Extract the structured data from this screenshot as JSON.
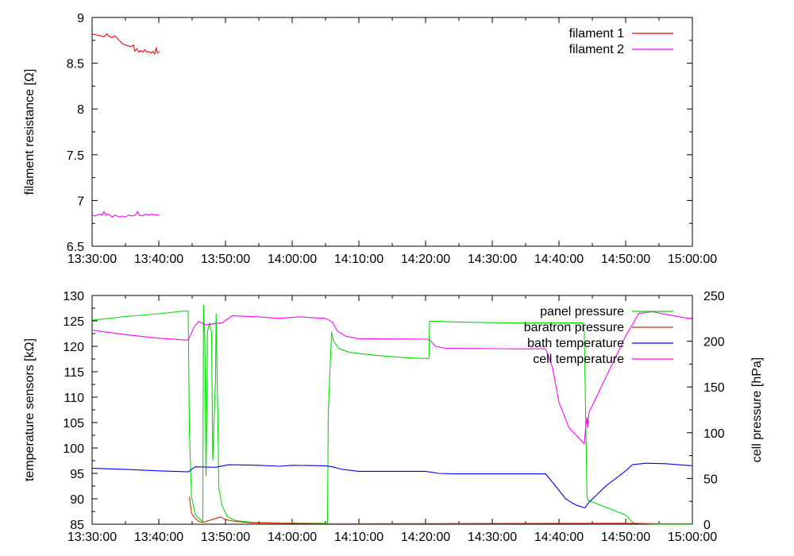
{
  "chart_data": [
    {
      "type": "line",
      "ylabel": "filament resistance [Ω]",
      "ylim": [
        6.5,
        9
      ],
      "yticks": [
        "6.5",
        "7",
        "7.5",
        "8",
        "8.5",
        "9"
      ],
      "xticks": [
        "13:30:00",
        "13:40:00",
        "13:50:00",
        "14:00:00",
        "14:10:00",
        "14:20:00",
        "14:30:00",
        "14:40:00",
        "14:50:00",
        "15:00:00"
      ],
      "xlim_minutes": [
        0,
        90
      ],
      "legend_position": "top-right",
      "series": [
        {
          "name": "filament 1",
          "color": "#ff0000",
          "points": [
            [
              0,
              8.82
            ],
            [
              0.6,
              8.81
            ],
            [
              1.2,
              8.8
            ],
            [
              1.8,
              8.79
            ],
            [
              2.2,
              8.82
            ],
            [
              2.6,
              8.79
            ],
            [
              3.0,
              8.78
            ],
            [
              3.4,
              8.8
            ],
            [
              3.8,
              8.77
            ],
            [
              4.2,
              8.74
            ],
            [
              4.6,
              8.71
            ],
            [
              5.0,
              8.7
            ],
            [
              5.4,
              8.69
            ],
            [
              5.8,
              8.68
            ],
            [
              6.2,
              8.7
            ],
            [
              6.4,
              8.63
            ],
            [
              6.7,
              8.66
            ],
            [
              7.0,
              8.62
            ],
            [
              7.3,
              8.64
            ],
            [
              7.6,
              8.62
            ],
            [
              7.9,
              8.65
            ],
            [
              8.2,
              8.62
            ],
            [
              8.5,
              8.63
            ],
            [
              8.8,
              8.61
            ],
            [
              9.1,
              8.63
            ],
            [
              9.4,
              8.6
            ],
            [
              9.6,
              8.67
            ],
            [
              9.8,
              8.61
            ],
            [
              10.1,
              8.63
            ]
          ]
        },
        {
          "name": "filament 2",
          "color": "#ff00ff",
          "points": [
            [
              0,
              6.84
            ],
            [
              0.5,
              6.83
            ],
            [
              1.0,
              6.85
            ],
            [
              1.5,
              6.84
            ],
            [
              1.8,
              6.88
            ],
            [
              2.1,
              6.84
            ],
            [
              2.5,
              6.85
            ],
            [
              3.0,
              6.82
            ],
            [
              3.5,
              6.84
            ],
            [
              4.0,
              6.82
            ],
            [
              4.5,
              6.83
            ],
            [
              5.0,
              6.82
            ],
            [
              5.5,
              6.84
            ],
            [
              6.0,
              6.83
            ],
            [
              6.5,
              6.84
            ],
            [
              6.8,
              6.88
            ],
            [
              7.1,
              6.84
            ],
            [
              7.6,
              6.83
            ],
            [
              8.0,
              6.85
            ],
            [
              8.5,
              6.84
            ],
            [
              9.0,
              6.85
            ],
            [
              9.5,
              6.84
            ],
            [
              10.1,
              6.84
            ]
          ]
        }
      ]
    },
    {
      "type": "line",
      "ylabel": "temperature sensors [kΩ]",
      "y2label": "cell pressure [hPa]",
      "ylim": [
        85,
        130
      ],
      "y2lim": [
        0,
        250
      ],
      "yticks": [
        "85",
        "90",
        "95",
        "100",
        "105",
        "110",
        "115",
        "120",
        "125",
        "130"
      ],
      "y2ticks": [
        "0",
        "50",
        "100",
        "150",
        "200",
        "250"
      ],
      "xticks": [
        "13:30:00",
        "13:40:00",
        "13:50:00",
        "14:00:00",
        "14:10:00",
        "14:20:00",
        "14:30:00",
        "14:40:00",
        "14:50:00",
        "15:00:00"
      ],
      "xlim_minutes": [
        0,
        90
      ],
      "legend_position": "top-right",
      "series": [
        {
          "name": "panel pressure",
          "color": "#00dd00",
          "axis": "y2",
          "points": [
            [
              0,
              223
            ],
            [
              5,
              227
            ],
            [
              10,
              230
            ],
            [
              13.8,
              233
            ],
            [
              14.4,
              233
            ],
            [
              14.6,
              100
            ],
            [
              14.9,
              30
            ],
            [
              15.5,
              10
            ],
            [
              16.2,
              5
            ],
            [
              16.6,
              3
            ],
            [
              16.7,
              240
            ],
            [
              16.9,
              200
            ],
            [
              17.0,
              120
            ],
            [
              17.1,
              53
            ],
            [
              17.3,
              210
            ],
            [
              17.6,
              220
            ],
            [
              17.9,
              210
            ],
            [
              18.1,
              70
            ],
            [
              18.5,
              160
            ],
            [
              18.6,
              230
            ],
            [
              18.8,
              140
            ],
            [
              19.0,
              40
            ],
            [
              19.5,
              20
            ],
            [
              20.3,
              8
            ],
            [
              21.5,
              4
            ],
            [
              24,
              2
            ],
            [
              30,
              1
            ],
            [
              35.3,
              1
            ],
            [
              35.4,
              120
            ],
            [
              35.9,
              210
            ],
            [
              36.2,
              200
            ],
            [
              37.0,
              192
            ],
            [
              38.5,
              188
            ],
            [
              42,
              185
            ],
            [
              47,
              182
            ],
            [
              50.5,
              181
            ],
            [
              50.6,
              222
            ],
            [
              55,
              221
            ],
            [
              63,
              220
            ],
            [
              71,
              220
            ],
            [
              73.6,
              220
            ],
            [
              73.8,
              210
            ],
            [
              74.2,
              30
            ],
            [
              74.4,
              26
            ],
            [
              80,
              10
            ],
            [
              81.2,
              1
            ],
            [
              85,
              0
            ],
            [
              90,
              0
            ]
          ]
        },
        {
          "name": "baratron pressure",
          "color": "#cc3300",
          "axis": "y2",
          "points": [
            [
              14.6,
              30
            ],
            [
              14.9,
              12
            ],
            [
              15.5,
              6
            ],
            [
              16.0,
              3
            ],
            [
              16.6,
              2
            ],
            [
              19.3,
              8
            ],
            [
              20.0,
              5
            ],
            [
              21.5,
              3
            ],
            [
              24,
              1.5
            ],
            [
              30,
              1
            ],
            [
              35.3,
              0.5
            ],
            [
              81.2,
              1
            ],
            [
              85,
              0.5
            ],
            [
              90,
              0.5
            ]
          ]
        },
        {
          "name": "bath temperature",
          "color": "#0000ff",
          "axis": "y",
          "points": [
            [
              0,
              96.0
            ],
            [
              5,
              95.8
            ],
            [
              10,
              95.5
            ],
            [
              14.4,
              95.3
            ],
            [
              15.5,
              96.3
            ],
            [
              18.5,
              96.2
            ],
            [
              20.5,
              96.7
            ],
            [
              25,
              96.6
            ],
            [
              28,
              96.4
            ],
            [
              30,
              96.6
            ],
            [
              35,
              96.5
            ],
            [
              36,
              96.3
            ],
            [
              37.5,
              95.8
            ],
            [
              40,
              95.4
            ],
            [
              50,
              95.4
            ],
            [
              52,
              95.0
            ],
            [
              54,
              94.9
            ],
            [
              60,
              94.9
            ],
            [
              68,
              94.9
            ],
            [
              69.5,
              92.5
            ],
            [
              71,
              90.0
            ],
            [
              72.5,
              88.8
            ],
            [
              73.9,
              88.2
            ],
            [
              74.4,
              89.2
            ],
            [
              77,
              92.5
            ],
            [
              80,
              95.5
            ],
            [
              81,
              96.7
            ],
            [
              83,
              97.0
            ],
            [
              86,
              96.9
            ],
            [
              90,
              96.5
            ]
          ]
        },
        {
          "name": "cell temperature",
          "color": "#ff00ff",
          "axis": "y",
          "points": [
            [
              0,
              123.2
            ],
            [
              5,
              122.3
            ],
            [
              10,
              121.6
            ],
            [
              14.4,
              121.2
            ],
            [
              15.3,
              123.8
            ],
            [
              16.0,
              124.9
            ],
            [
              17.0,
              124.2
            ],
            [
              18.5,
              124.5
            ],
            [
              19.5,
              124.6
            ],
            [
              21,
              126.0
            ],
            [
              25,
              125.8
            ],
            [
              28,
              125.5
            ],
            [
              31,
              125.8
            ],
            [
              35,
              125.5
            ],
            [
              36,
              124.8
            ],
            [
              36.8,
              123.0
            ],
            [
              38,
              122.0
            ],
            [
              40,
              121.5
            ],
            [
              50.5,
              121.4
            ],
            [
              51.5,
              120.0
            ],
            [
              53,
              119.6
            ],
            [
              63,
              119.5
            ],
            [
              68,
              119.5
            ],
            [
              69,
              116.0
            ],
            [
              70,
              109.0
            ],
            [
              71.5,
              104.0
            ],
            [
              73.8,
              100.8
            ],
            [
              74.0,
              104.0
            ],
            [
              74.2,
              106.0
            ],
            [
              74.3,
              104.0
            ],
            [
              74.5,
              107.0
            ],
            [
              80,
              122.0
            ],
            [
              82,
              126.5
            ],
            [
              84,
              126.8
            ],
            [
              86,
              126.3
            ],
            [
              88,
              125.8
            ],
            [
              90,
              125.4
            ]
          ]
        }
      ]
    }
  ]
}
